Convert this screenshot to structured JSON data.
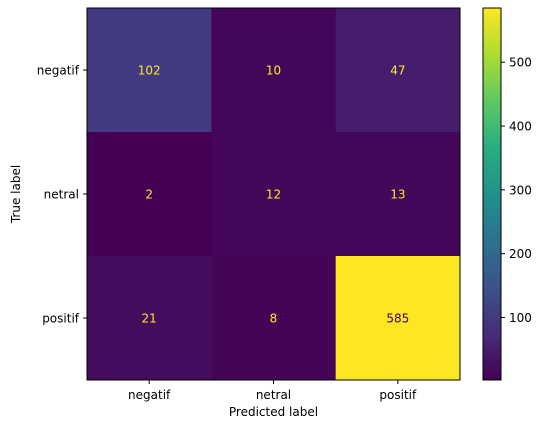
{
  "chart_data": {
    "type": "heatmap",
    "title": "",
    "xlabel": "Predicted label",
    "ylabel": "True label",
    "x_categories": [
      "negatif",
      "netral",
      "positif"
    ],
    "y_categories": [
      "negatif",
      "netral",
      "positif"
    ],
    "matrix": [
      [
        102,
        10,
        47
      ],
      [
        2,
        12,
        13
      ],
      [
        21,
        8,
        585
      ]
    ],
    "colormap": "viridis",
    "colorbar": {
      "range": [
        2,
        585
      ],
      "ticks": [
        100,
        200,
        300,
        400,
        500
      ],
      "tick_labels": [
        "100",
        "200",
        "300",
        "400",
        "500"
      ]
    },
    "grid": false,
    "text_colors": {
      "on_dark": "#fde725",
      "on_light": "#440154"
    }
  }
}
